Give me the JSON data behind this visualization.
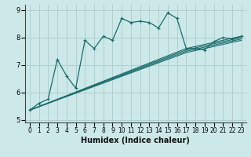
{
  "xlabel": "Humidex (Indice chaleur)",
  "bg_color": "#cce8e8",
  "grid_color": "#aacccc",
  "line_color": "#1a6b6b",
  "xlim": [
    -0.5,
    23.5
  ],
  "ylim": [
    4.9,
    9.2
  ],
  "yticks": [
    5,
    6,
    7,
    8,
    9
  ],
  "xticks": [
    0,
    1,
    2,
    3,
    4,
    5,
    6,
    7,
    8,
    9,
    10,
    11,
    12,
    13,
    14,
    15,
    16,
    17,
    18,
    19,
    20,
    21,
    22,
    23
  ],
  "jagged_x": [
    0,
    1,
    2,
    3,
    4,
    5,
    6,
    7,
    8,
    9,
    10,
    11,
    12,
    13,
    14,
    15,
    16,
    17,
    18,
    19,
    20,
    21,
    22,
    23
  ],
  "jagged_y": [
    5.35,
    5.6,
    5.75,
    7.2,
    6.6,
    6.15,
    7.9,
    7.6,
    8.05,
    7.9,
    8.7,
    8.55,
    8.6,
    8.55,
    8.35,
    8.9,
    8.7,
    7.6,
    7.6,
    7.55,
    7.85,
    8.0,
    7.95,
    8.05
  ],
  "straight_lines": [
    {
      "x": [
        0,
        17,
        23
      ],
      "y": [
        5.35,
        7.6,
        8.05
      ]
    },
    {
      "x": [
        0,
        17,
        23
      ],
      "y": [
        5.35,
        7.55,
        8.0
      ]
    },
    {
      "x": [
        0,
        17,
        23
      ],
      "y": [
        5.35,
        7.5,
        7.95
      ]
    },
    {
      "x": [
        0,
        17,
        23
      ],
      "y": [
        5.35,
        7.45,
        7.9
      ]
    }
  ],
  "xlabel_fontsize": 7,
  "tick_fontsize": 5.5,
  "ytick_fontsize": 6
}
